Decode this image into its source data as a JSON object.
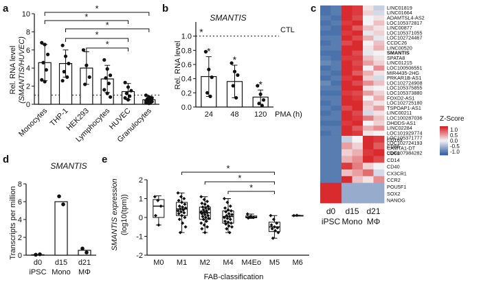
{
  "colors": {
    "bar_fill": "#ffffff",
    "bar_stroke": "#111111",
    "point": "#111111",
    "heat_red": "#d7191c",
    "heat_white": "#f3f3f5",
    "heat_blue": "#2c5a9c"
  },
  "panel_labels": [
    "a",
    "b",
    "c",
    "d",
    "e"
  ],
  "chart_data": [
    {
      "panel": "a",
      "type": "bar",
      "title": "",
      "ylabel_main": "Rel. RNA level",
      "ylabel_sub": "(SMANTIS/HUVEC)",
      "categories": [
        "Monocytes",
        "THP-1",
        "HEK293",
        "Lymphocytes",
        "HUVEC",
        "Granulocytes"
      ],
      "values": [
        4.6,
        4.5,
        4.0,
        2.8,
        1.4,
        0.5
      ],
      "errors": [
        2.0,
        1.5,
        1.8,
        1.5,
        0.9,
        0.4
      ],
      "points": [
        [
          6.8,
          6.6,
          5.5,
          4.6,
          3.8,
          2.7,
          2.5
        ],
        [
          6.5,
          5.3,
          4.5,
          3.6,
          3.0,
          2.6
        ],
        [
          6.0,
          4.3,
          3.0,
          2.2
        ],
        [
          4.9,
          3.9,
          3.2,
          2.9,
          2.3,
          1.6,
          1.2,
          0.8
        ],
        [
          2.4,
          1.9,
          1.5,
          1.2,
          0.9,
          0.7,
          0.5
        ],
        [
          1.0,
          0.8,
          0.7,
          0.6,
          0.5,
          0.4,
          0.35,
          0.3,
          0.25,
          0.2,
          0.15,
          0.1
        ]
      ],
      "ylim": [
        0,
        10
      ],
      "yticks": [
        "0",
        "2",
        "4",
        "6",
        "8",
        "10"
      ],
      "reference_line": 1,
      "significance": [
        {
          "from": "Monocytes",
          "to": "Granulocytes",
          "label": "*"
        },
        {
          "from": "Monocytes",
          "to": "HUVEC",
          "label": "*"
        },
        {
          "from": "THP-1",
          "to": "Granulocytes",
          "label": "*"
        },
        {
          "from": "THP-1",
          "to": "HUVEC",
          "label": "*"
        },
        {
          "from": "HEK293",
          "to": "HUVEC",
          "label": "*"
        }
      ]
    },
    {
      "panel": "b",
      "type": "bar",
      "title": "SMANTIS",
      "ylabel": "Rel. RNA level",
      "xlabel": "PMA (h)",
      "categories": [
        "24",
        "48",
        "120"
      ],
      "values": [
        0.43,
        0.36,
        0.14
      ],
      "errors": [
        0.28,
        0.23,
        0.1
      ],
      "points": [
        [
          0.78,
          0.53,
          0.42,
          0.2,
          0.15
        ],
        [
          0.62,
          0.5,
          0.45,
          0.3,
          0.13
        ],
        [
          0.3,
          0.18,
          0.1,
          0.05,
          0.02
        ]
      ],
      "ylim": [
        0,
        1.2
      ],
      "yticks": [
        "0.0",
        "0.2",
        "0.4",
        "0.6",
        "0.8",
        "1.0"
      ],
      "reference_line": 1.0,
      "reference_label": "CTL",
      "significance_labels": [
        "*",
        "*",
        "*",
        "*"
      ]
    },
    {
      "panel": "c",
      "type": "heatmap",
      "columns": [
        "d0",
        "d15",
        "d21"
      ],
      "column_subs": [
        "iPSC",
        "Mono",
        "MΦ"
      ],
      "legend_title": "Z-Score",
      "legend_ticks": [
        "1.0",
        "0.5",
        "0.0",
        "-0.5",
        "-1.0"
      ],
      "value_range": [
        -1.3,
        1.3
      ],
      "highlighted_row": "SMANTIS",
      "top_rows": [
        {
          "name": "LINC01819",
          "values": [
            -1.1,
            -1.0,
            1.2,
            1.1,
            0.1,
            -0.3
          ]
        },
        {
          "name": "LINC01664",
          "values": [
            -1.1,
            -1.0,
            1.2,
            1.1,
            0.2,
            -0.2
          ]
        },
        {
          "name": "ADAMTSL4-AS2",
          "values": [
            -1.0,
            -1.1,
            1.2,
            1.0,
            0.0,
            0.1
          ]
        },
        {
          "name": "LOC105372817",
          "values": [
            -1.1,
            -1.0,
            1.1,
            1.2,
            0.0,
            0.3
          ]
        },
        {
          "name": "LINC00877",
          "values": [
            -1.0,
            -1.1,
            1.2,
            0.9,
            0.3,
            0.1
          ]
        },
        {
          "name": "LOC105371055",
          "values": [
            -1.1,
            -1.1,
            1.1,
            1.2,
            -0.1,
            0.2
          ]
        },
        {
          "name": "LOC102724467",
          "values": [
            -1.0,
            -1.0,
            1.2,
            1.0,
            0.4,
            -0.1
          ]
        },
        {
          "name": "CCDC26",
          "values": [
            -1.1,
            -1.0,
            1.0,
            1.2,
            0.0,
            0.3
          ]
        },
        {
          "name": "LINC00520",
          "values": [
            -1.0,
            -1.0,
            1.2,
            1.2,
            0.1,
            0.4
          ]
        },
        {
          "name": "SMANTIS",
          "values": [
            -1.1,
            -1.1,
            1.2,
            1.0,
            -0.1,
            0.0
          ]
        },
        {
          "name": "SPATA8",
          "values": [
            -1.0,
            -1.1,
            1.1,
            1.1,
            0.3,
            0.1
          ]
        },
        {
          "name": "LINC01215",
          "values": [
            -0.9,
            -1.0,
            1.2,
            1.0,
            0.5,
            0.2
          ]
        },
        {
          "name": "LOC100506551",
          "values": [
            -1.1,
            -1.0,
            1.2,
            1.1,
            0.0,
            0.6
          ]
        },
        {
          "name": "MIR4435-2HG",
          "values": [
            -1.0,
            -1.1,
            1.2,
            0.9,
            0.4,
            0.1
          ]
        },
        {
          "name": "PRKAR1B-AS1",
          "values": [
            -1.1,
            -1.0,
            1.1,
            1.2,
            0.2,
            -0.2
          ]
        },
        {
          "name": "LOC102724908",
          "values": [
            -0.9,
            -1.1,
            1.2,
            1.0,
            0.6,
            0.3
          ]
        },
        {
          "name": "LOC105375855",
          "values": [
            -1.0,
            -1.0,
            1.2,
            1.2,
            0.1,
            0.0
          ]
        },
        {
          "name": "LOC105373880",
          "values": [
            -1.1,
            -1.1,
            1.1,
            1.0,
            0.5,
            0.2
          ]
        },
        {
          "name": "FOXD2-AS1",
          "values": [
            -1.0,
            -1.0,
            1.2,
            1.1,
            0.0,
            0.4
          ]
        },
        {
          "name": "LOC102725180",
          "values": [
            -1.1,
            -1.0,
            1.2,
            1.2,
            0.3,
            0.1
          ]
        },
        {
          "name": "TSPOAP1-AS1",
          "values": [
            -1.0,
            -1.1,
            1.0,
            1.2,
            0.2,
            0.5
          ]
        },
        {
          "name": "LINC00211",
          "values": [
            -1.1,
            -1.0,
            1.2,
            1.0,
            -0.2,
            0.1
          ]
        },
        {
          "name": "LOC100287036",
          "values": [
            -1.0,
            -1.0,
            1.2,
            1.1,
            0.7,
            0.3
          ]
        },
        {
          "name": "DHDDS-AS1",
          "values": [
            -1.1,
            -1.1,
            1.1,
            1.2,
            0.0,
            0.2
          ]
        },
        {
          "name": "LINC02284",
          "values": [
            -1.0,
            -1.0,
            1.2,
            0.9,
            0.4,
            0.6
          ]
        },
        {
          "name": "LOC101929774",
          "values": [
            -1.1,
            -1.0,
            1.2,
            1.1,
            0.1,
            0.0
          ]
        },
        {
          "name": "LOC105371777",
          "values": [
            -1.0,
            -1.1,
            1.1,
            1.2,
            0.5,
            0.2
          ]
        },
        {
          "name": "LOC102724193",
          "values": [
            -1.1,
            -1.0,
            1.2,
            1.0,
            0.2,
            0.4
          ]
        },
        {
          "name": "CAMTA1-DT",
          "values": [
            -1.0,
            -1.0,
            1.2,
            1.1,
            0.3,
            0.1
          ]
        },
        {
          "name": "LOC107984282",
          "values": [
            -1.1,
            -1.1,
            1.1,
            1.2,
            0.0,
            0.3
          ]
        }
      ],
      "bottom_rows": [
        {
          "name": "CD163",
          "values": [
            -1.0,
            -1.0,
            -0.3,
            0.0,
            1.2,
            1.1
          ]
        },
        {
          "name": "CD86",
          "values": [
            -1.0,
            -1.0,
            0.5,
            0.2,
            1.2,
            0.9
          ]
        },
        {
          "name": "CD68",
          "values": [
            -1.0,
            -1.0,
            0.2,
            0.4,
            1.1,
            1.2
          ]
        },
        {
          "name": "CD14",
          "values": [
            -1.0,
            -1.0,
            0.4,
            0.6,
            1.2,
            1.0
          ]
        },
        {
          "name": "CD40",
          "values": [
            -1.0,
            -1.0,
            1.1,
            0.7,
            0.2,
            0.0
          ]
        },
        {
          "name": "CX3CR1",
          "values": [
            -1.0,
            -1.0,
            0.3,
            0.5,
            0.8,
            -0.2
          ]
        },
        {
          "name": "CCR2",
          "values": [
            -1.0,
            -1.0,
            1.2,
            0.3,
            0.1,
            0.6
          ]
        },
        {
          "name": "POU5F1",
          "values": [
            1.2,
            1.2,
            -0.6,
            -0.6,
            -0.6,
            -0.6
          ]
        },
        {
          "name": "SOX2",
          "values": [
            1.2,
            1.2,
            -0.6,
            -0.6,
            -0.6,
            -0.6
          ]
        },
        {
          "name": "NANOG",
          "values": [
            1.2,
            1.2,
            -0.6,
            -0.6,
            -0.6,
            -0.6
          ]
        }
      ]
    },
    {
      "panel": "d",
      "type": "bar",
      "title": "SMANTIS",
      "ylabel": "Transcripts per million",
      "categories": [
        "d0",
        "d15",
        "d21"
      ],
      "category_subs": [
        "iPSC",
        "Mono",
        "MΦ"
      ],
      "values": [
        0.05,
        6.0,
        0.55
      ],
      "points": [
        [
          0.05,
          0.1
        ],
        [
          6.6,
          5.7
        ],
        [
          0.75,
          0.3
        ]
      ],
      "ylim": [
        0,
        8
      ],
      "yticks": [
        "0",
        "2",
        "4",
        "6",
        "8"
      ]
    },
    {
      "panel": "e",
      "type": "box",
      "ylabel_main": "SMANTIS expression",
      "ylabel_sub": "(log10(tpm))",
      "xlabel": "FAB-classification",
      "categories": [
        "M0",
        "M1",
        "M2",
        "M4",
        "M4Eo",
        "M5",
        "M6"
      ],
      "boxes": [
        {
          "min": -0.4,
          "q1": 0.0,
          "median": 0.6,
          "q3": 0.95,
          "max": 1.15
        },
        {
          "min": -0.8,
          "q1": 0.1,
          "median": 0.45,
          "q3": 0.8,
          "max": 1.3
        },
        {
          "min": -0.8,
          "q1": -0.1,
          "median": 0.25,
          "q3": 0.55,
          "max": 1.1
        },
        {
          "min": -0.8,
          "q1": -0.3,
          "median": 0.05,
          "q3": 0.35,
          "max": 1.0
        },
        {
          "min": -0.05,
          "q1": -0.02,
          "median": 0.02,
          "q3": 0.08,
          "max": 0.18
        },
        {
          "min": -1.1,
          "q1": -0.75,
          "median": -0.5,
          "q3": -0.25,
          "max": 0.1
        },
        {
          "min": 0.08,
          "q1": 0.09,
          "median": 0.1,
          "q3": 0.11,
          "max": 0.12
        }
      ],
      "points": [
        [
          1.1,
          0.9,
          0.6,
          0.1,
          -0.4
        ],
        [
          1.3,
          1.1,
          1.0,
          0.9,
          0.8,
          0.7,
          0.6,
          0.55,
          0.5,
          0.45,
          0.4,
          0.35,
          0.3,
          0.25,
          0.2,
          0.1,
          0.0,
          -0.1,
          -0.3,
          -0.5,
          -0.8
        ],
        [
          1.1,
          0.95,
          0.85,
          0.75,
          0.7,
          0.6,
          0.55,
          0.5,
          0.45,
          0.4,
          0.35,
          0.3,
          0.28,
          0.25,
          0.2,
          0.15,
          0.1,
          0.05,
          0.0,
          -0.05,
          -0.1,
          -0.2,
          -0.3,
          -0.4,
          -0.5,
          -0.6,
          -0.8
        ],
        [
          1.0,
          0.8,
          0.6,
          0.5,
          0.4,
          0.35,
          0.3,
          0.2,
          0.15,
          0.1,
          0.05,
          0.0,
          -0.05,
          -0.1,
          -0.2,
          -0.25,
          -0.3,
          -0.35,
          -0.45,
          -0.5,
          -0.6,
          -0.8
        ],
        [
          0.18,
          0.05,
          0.0,
          -0.03
        ],
        [
          0.1,
          -0.1,
          -0.3,
          -0.4,
          -0.5,
          -0.55,
          -0.6,
          -0.7,
          -0.8,
          -1.1
        ],
        [
          0.1,
          0.11
        ]
      ],
      "ylim": [
        -2,
        2
      ],
      "yticks": [
        "-2",
        "-1",
        "0",
        "1",
        "2"
      ],
      "significance": [
        {
          "from": "M1",
          "to": "M5",
          "label": "*"
        },
        {
          "from": "M2",
          "to": "M5",
          "label": "*"
        },
        {
          "from": "M4",
          "to": "M5",
          "label": "*"
        }
      ]
    }
  ]
}
